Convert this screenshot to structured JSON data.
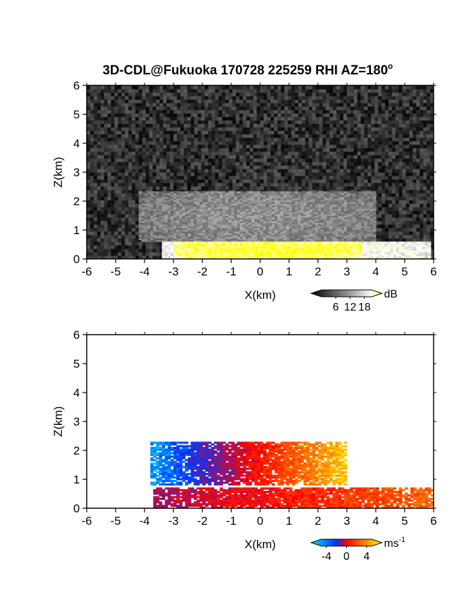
{
  "figure": {
    "title": "3D-CDL@Fukuoka 170728 225259 RHI AZ=180",
    "title_superscript": "o"
  },
  "chart_data": [
    {
      "type": "heatmap",
      "name": "backscatter",
      "xlabel": "X(km)",
      "ylabel": "Z(km)",
      "xlim": [
        -6,
        6
      ],
      "ylim": [
        0,
        6
      ],
      "xticks": [
        "-6",
        "-5",
        "-4",
        "-3",
        "-2",
        "-1",
        "0",
        "1",
        "2",
        "3",
        "4",
        "5",
        "6"
      ],
      "yticks": [
        "0",
        "1",
        "2",
        "3",
        "4",
        "5",
        "6"
      ],
      "colorbar": {
        "unit": "dB",
        "tick_labels": [
          "6",
          "12",
          "18"
        ],
        "range": [
          0,
          21
        ],
        "colors": [
          "#000000",
          "#555555",
          "#aaaaaa",
          "#ffffff",
          "#ffff00"
        ]
      },
      "layers": [
        {
          "label": "noise background",
          "x_range": [
            -6,
            6
          ],
          "z_range": [
            0,
            6
          ],
          "value_db": 3
        },
        {
          "label": "elevated aerosol layer",
          "x_range": [
            -4.2,
            4.0
          ],
          "z_range": [
            0.6,
            2.3
          ],
          "value_db": 9
        },
        {
          "label": "near-surface layer",
          "x_range": [
            -3.4,
            5.8
          ],
          "z_range": [
            0.0,
            0.6
          ],
          "value_db": 16
        },
        {
          "label": "saturated core",
          "x_range": [
            -3.0,
            3.5
          ],
          "z_range": [
            0.05,
            0.55
          ],
          "value_db": 20
        }
      ]
    },
    {
      "type": "heatmap",
      "name": "doppler_velocity",
      "xlabel": "X(km)",
      "ylabel": "Z(km)",
      "xlim": [
        -6,
        6
      ],
      "ylim": [
        0,
        6
      ],
      "xticks": [
        "-6",
        "-5",
        "-4",
        "-3",
        "-2",
        "-1",
        "0",
        "1",
        "2",
        "3",
        "4",
        "5",
        "6"
      ],
      "yticks": [
        "0",
        "1",
        "2",
        "3",
        "4",
        "5",
        "6"
      ],
      "colorbar": {
        "unit": "ms",
        "unit_superscript": "-1",
        "tick_labels": [
          "-4",
          "0",
          "4"
        ],
        "range": [
          -5,
          5
        ],
        "colors": [
          "#00e5ff",
          "#0033ff",
          "#ff0000",
          "#ff8000",
          "#ffff00"
        ]
      },
      "layers": [
        {
          "label": "upper layer",
          "x_range": [
            -3.8,
            3.0
          ],
          "z_range": [
            0.8,
            2.3
          ],
          "velocity_left": -4,
          "velocity_right": 4
        },
        {
          "label": "lower layer",
          "x_range": [
            -3.7,
            6.0
          ],
          "z_range": [
            0.0,
            0.7
          ],
          "velocity_left": -1,
          "velocity_right": 2
        }
      ]
    }
  ]
}
